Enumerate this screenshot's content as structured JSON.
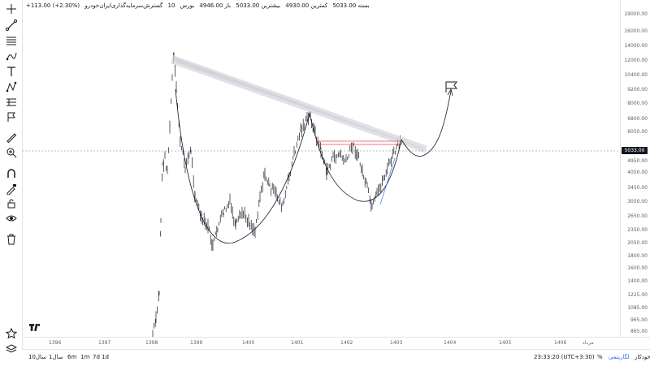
{
  "legend": {
    "symbol": "گسترش‌سرمایه‌گذاری‌ایران‌خودرو",
    "interval": "10",
    "exchange": "بورس",
    "open": "باز 4946.00",
    "high": "بیشترین 5033.00",
    "low": "کمترین 4930.00",
    "close": "بسته 5033.00",
    "change": "+113.00 (+2.30%)"
  },
  "price_axis": {
    "ticks": [
      "19000.00",
      "16000.00",
      "14000.00",
      "12000.00",
      "10400.00",
      "9200.00",
      "8000.00",
      "6800.00",
      "6050.00",
      "4950.00",
      "4050.00",
      "3450.00",
      "3050.00",
      "2650.00",
      "2350.00",
      "2050.00",
      "1800.00",
      "1600.00",
      "1400.00",
      "1225.00",
      "1085.00",
      "965.00",
      "865.00"
    ],
    "current_price": "5033.00"
  },
  "time_axis": {
    "ticks": [
      "1396",
      "1397",
      "1398",
      "1399",
      "1400",
      "1401",
      "1402",
      "1403",
      "1404",
      "1405",
      "1406"
    ],
    "right_label": "مرداد"
  },
  "bottom_bar": {
    "ranges": [
      "1d",
      "7d",
      "1m",
      "6m",
      "1سال",
      "10سال"
    ],
    "clock": "23:33:20 (UTC+3:30)",
    "percent": "%",
    "log": "لگاریتمی",
    "auto": "خودکار"
  },
  "tools": [
    "crosshair-icon",
    "trend-line-icon",
    "horizontal-lines-icon",
    "path-icon",
    "text-icon",
    "pattern-icon",
    "measure-lines-icon",
    "flag-icon",
    "ruler-icon",
    "zoom-icon",
    "magnet-icon",
    "pencil-lock-icon",
    "lock-icon",
    "eye-icon",
    "trash-icon",
    "star-icon",
    "layers-icon"
  ],
  "chart_data": {
    "type": "candlestick",
    "x_axis_years": [
      "1396",
      "1397",
      "1398",
      "1399",
      "1400",
      "1401",
      "1402",
      "1403",
      "1404",
      "1405",
      "1406"
    ],
    "y_scale": "log",
    "current_price": 5033,
    "annotations": [
      "descending trend channel",
      "cup pattern curves",
      "projected target arrow",
      "flag marker"
    ]
  }
}
